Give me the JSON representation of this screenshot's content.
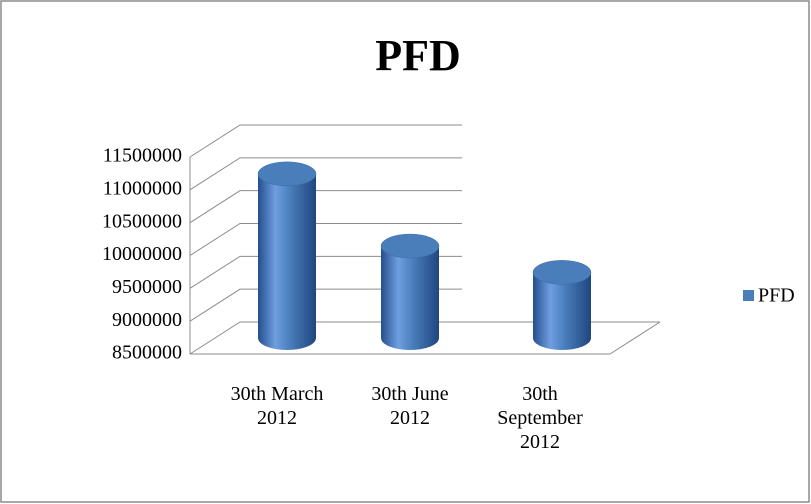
{
  "chart_data": {
    "type": "bar",
    "title": "PFD",
    "categories": [
      "30th March 2012",
      "30th June 2012",
      "30th September 2012"
    ],
    "series": [
      {
        "name": "PFD",
        "color": "#4a7ebb",
        "values": [
          11000000,
          9900000,
          9500000
        ]
      }
    ],
    "ylim": [
      8500000,
      11500000
    ],
    "yticks": [
      8500000,
      9000000,
      9500000,
      10000000,
      10500000,
      11000000,
      11500000
    ],
    "grid": true,
    "legend": "right"
  }
}
